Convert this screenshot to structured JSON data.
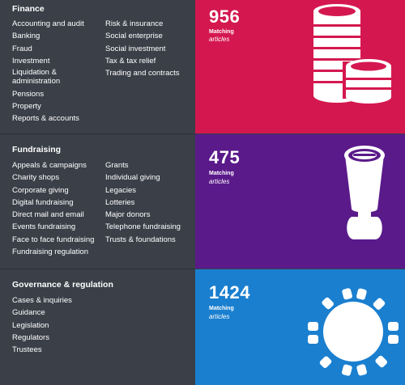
{
  "sections": [
    {
      "id": "finance",
      "title": "Finance",
      "color": "#d4184f",
      "count": "956",
      "matching_label": "Matching",
      "articles_label": "articles",
      "icon": "coins-icon",
      "col1": [
        "Accounting and audit",
        "Banking",
        "Fraud",
        "Investment",
        "Liquidation &",
        "administration",
        "Pensions",
        "Property",
        "Reports & accounts"
      ],
      "col2": [
        "Risk & insurance",
        "Social enterprise",
        "Social investment",
        "Tax & tax relief",
        "Trading and contracts"
      ]
    },
    {
      "id": "fundraising",
      "title": "Fundraising",
      "color": "#5a1a8a",
      "count": "475",
      "matching_label": "Matching",
      "articles_label": "articles",
      "icon": "collection-tin-icon",
      "col1": [
        "Appeals & campaigns",
        "Charity shops",
        "Corporate giving",
        "Digital fundraising",
        "Direct mail and email",
        "Events fundraising",
        "Face to face fundraising",
        "Fundraising regulation"
      ],
      "col2": [
        "Grants",
        "Individual giving",
        "Legacies",
        "Lotteries",
        "Major donors",
        "Telephone fundraising",
        "Trusts & foundations"
      ]
    },
    {
      "id": "governance",
      "title": "Governance & regulation",
      "color": "#1a7fcf",
      "count": "1424",
      "matching_label": "Matching",
      "articles_label": "articles",
      "icon": "boardroom-table-icon",
      "col1": [
        "Cases & inquiries",
        "Guidance",
        "Legislation",
        "Regulators",
        "Trustees"
      ],
      "col2": []
    }
  ]
}
